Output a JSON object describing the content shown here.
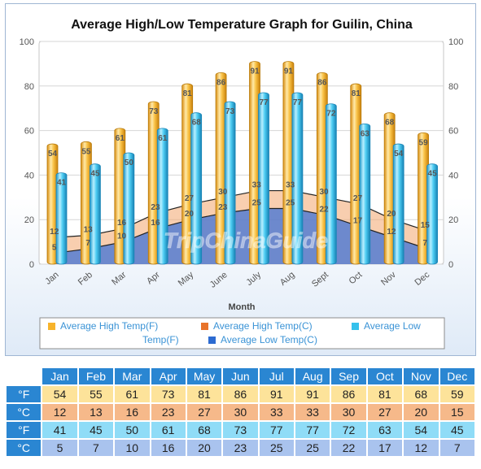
{
  "chart_data": {
    "type": "bar",
    "title": "Average High/Low Temperature Graph for Guilin, China",
    "xlabel": "Month",
    "ylim": [
      0,
      100
    ],
    "yticks": [
      0,
      20,
      40,
      60,
      80,
      100
    ],
    "categories": [
      "Jan",
      "Feb",
      "Mar",
      "Apr",
      "May",
      "June",
      "July",
      "Aug",
      "Sept",
      "Oct",
      "Nov",
      "Dec"
    ],
    "series": [
      {
        "name": "Average High Temp(F)",
        "kind": "bar",
        "color": "#f7b32b",
        "values": [
          54,
          55,
          61,
          73,
          81,
          86,
          91,
          91,
          86,
          81,
          68,
          59
        ]
      },
      {
        "name": "Average High Temp(C)",
        "kind": "area",
        "color": "#e8732a",
        "values": [
          12,
          13,
          16,
          23,
          27,
          30,
          33,
          33,
          30,
          27,
          20,
          15
        ]
      },
      {
        "name": "Average Low Temp(F)",
        "kind": "bar",
        "color": "#36c1ec",
        "values": [
          41,
          45,
          50,
          61,
          68,
          73,
          77,
          77,
          72,
          63,
          54,
          45
        ]
      },
      {
        "name": "Average Low Temp(C)",
        "kind": "area",
        "color": "#2d6bd1",
        "values": [
          5,
          7,
          10,
          16,
          20,
          23,
          25,
          25,
          22,
          17,
          12,
          7
        ]
      }
    ],
    "watermark": "TripChinaGuide",
    "legend_placement": "bottom"
  },
  "table": {
    "headers": [
      "Jan",
      "Feb",
      "Mar",
      "Apr",
      "May",
      "Jun",
      "Jul",
      "Aug",
      "Sep",
      "Oct",
      "Nov",
      "Dec"
    ],
    "rows": [
      {
        "label": "°F",
        "values": [
          54,
          55,
          61,
          73,
          81,
          86,
          91,
          91,
          86,
          81,
          68,
          59
        ]
      },
      {
        "label": "°C",
        "values": [
          12,
          13,
          16,
          23,
          27,
          30,
          33,
          33,
          30,
          27,
          20,
          15
        ]
      },
      {
        "label": "°F",
        "values": [
          41,
          45,
          50,
          61,
          68,
          73,
          77,
          77,
          72,
          63,
          54,
          45
        ]
      },
      {
        "label": "°C",
        "values": [
          5,
          7,
          10,
          16,
          20,
          23,
          25,
          25,
          22,
          17,
          12,
          7
        ]
      }
    ]
  }
}
